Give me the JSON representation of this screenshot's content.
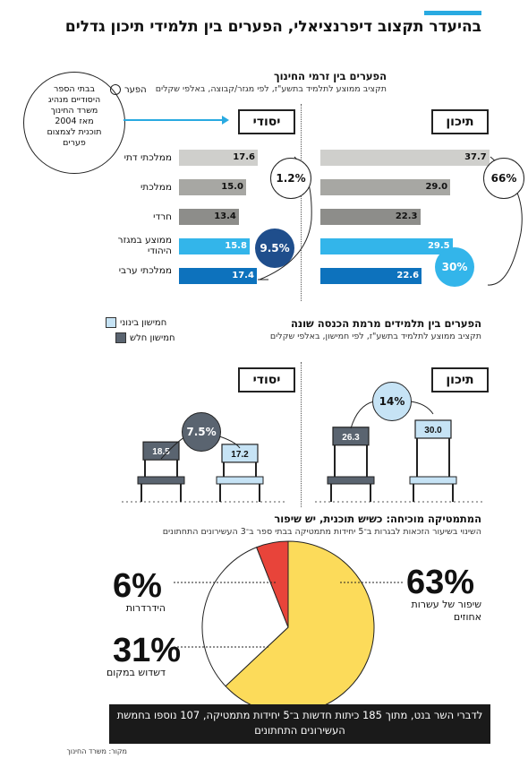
{
  "header": {
    "title": "בהיעדר תקצוב דיפרנציאלי, הפערים בין תלמידי תיכון גדלים"
  },
  "colors": {
    "accent": "#29aae1",
    "light_gray": "#cfcfcc",
    "gray": "#a7a7a3",
    "dark_gray": "#8d8d8a",
    "light_blue": "#33b5ea",
    "blue": "#0d72bd",
    "navy": "#1f4e8c",
    "pale_blue": "#c6e3f5",
    "slate": "#5a6470",
    "yellow": "#fcdb5a",
    "red": "#e8443a"
  },
  "section1": {
    "title": "הפערים בין זרמי החינוך",
    "subtitle": "תקציב ממוצע לתלמיד בתשע\"ז, לפי מגזר/קבוצה, באלפי שקלים",
    "legend_gap": "הפער",
    "callout": "בבתי הספר היסודיים מנהיג משרד החינוך מאז 2004 תוכנית לצמצום פערים",
    "label_elementary": "יסודי",
    "label_high": "תיכון",
    "gap_elem_top": "1.2%",
    "gap_elem_bottom": "9.5%",
    "gap_high_top": "66%",
    "gap_high_bottom": "30%"
  },
  "section2": {
    "title": "הפערים בין תלמידים מרמת הכנסה שונה",
    "subtitle": "תקציב ממוצע לתלמיד בתשע\"ז, לפי חמישון, באלפי שקלים",
    "legend_middle": "חמישון בינוני",
    "legend_weak": "חמישון חלש",
    "label_elementary": "יסודי",
    "label_high": "תיכון",
    "gap_elem": "7.5%",
    "gap_high": "14%"
  },
  "section3": {
    "title": "המתמטיקה מוכיחה: כשיש תוכנית, יש שיפור",
    "subtitle": "השינוי בשיעור הזכאות לבגרות ב־5 יחידות מתמטיקה בבתי ספר ב־3 העשירונים התחתונים",
    "pct_decline": "6%",
    "label_decline": "הידרדרות",
    "pct_stagnate": "31%",
    "label_stagnate": "דשדוש במקום",
    "pct_improve": "63%",
    "label_improve": "שיפור של עשרות אחוזים"
  },
  "footer": {
    "note": "לדברי השר בנט, מתוך 185 כיתות חדשות ב־5 יחידות מתמטיקה, 107 נוספו בחמשת העשירונים התחתונים",
    "source": "מקור: משרד החינוך"
  },
  "chart_data": [
    {
      "type": "bar",
      "title": "הפערים בין זרמי החינוך",
      "categories": [
        "ממלכתי דתי",
        "ממלכתי",
        "חרדי",
        "ממוצע במגזר היהודי",
        "ממלכתי ערבי"
      ],
      "series": [
        {
          "name": "יסודי",
          "values": [
            17.6,
            15.0,
            13.4,
            15.8,
            17.4
          ]
        },
        {
          "name": "תיכון",
          "values": [
            37.7,
            29.0,
            22.3,
            29.5,
            22.6
          ]
        }
      ]
    },
    {
      "type": "bar",
      "title": "הפערים בין תלמידים מרמת הכנסה שונה",
      "categories": [
        "יסודי",
        "תיכון"
      ],
      "series": [
        {
          "name": "חמישון בינוני",
          "values": [
            17.2,
            30.0
          ]
        },
        {
          "name": "חמישון חלש",
          "values": [
            18.5,
            26.3
          ]
        }
      ]
    },
    {
      "type": "pie",
      "title": "המתמטיקה מוכיחה: כשיש תוכנית, יש שיפור",
      "categories": [
        "שיפור של עשרות אחוזים",
        "דשדוש במקום",
        "הידרדרות"
      ],
      "values": [
        63,
        31,
        6
      ]
    }
  ]
}
